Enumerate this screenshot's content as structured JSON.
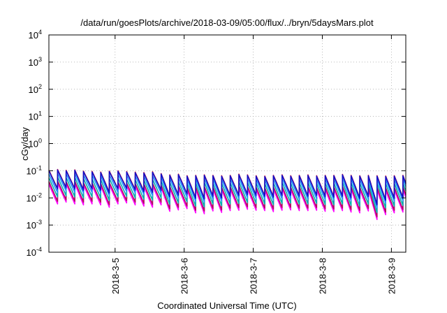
{
  "chart_data": {
    "type": "line",
    "title": "/data/run/goesPlots/archive/2018-03-09/05:00/flux/../bryn/5daysMars.plot",
    "xlabel": "Coordinated Universal Time (UTC)",
    "ylabel": "cGy/day",
    "yscale": "log",
    "ylim": [
      0.0001,
      10000
    ],
    "xlim": [
      "2018-03-04 01:00",
      "2018-03-09 05:00"
    ],
    "grid": true,
    "legend": "none",
    "x_ticks": [
      "2018-3-5",
      "2018-3-6",
      "2018-3-7",
      "2018-3-8",
      "2018-3-9"
    ],
    "y_ticks": [
      {
        "base": "10",
        "exp": "-4",
        "value": 0.0001
      },
      {
        "base": "10",
        "exp": "-3",
        "value": 0.001
      },
      {
        "base": "10",
        "exp": "-2",
        "value": 0.01
      },
      {
        "base": "10",
        "exp": "-1",
        "value": 0.1
      },
      {
        "base": "10",
        "exp": "0",
        "value": 1
      },
      {
        "base": "10",
        "exp": "1",
        "value": 10
      },
      {
        "base": "10",
        "exp": "2",
        "value": 100
      },
      {
        "base": "10",
        "exp": "3",
        "value": 1000
      },
      {
        "base": "10",
        "exp": "4",
        "value": 10000
      }
    ],
    "cycle_hours": 3,
    "series": [
      {
        "color": "#ff00ff",
        "peaks": [
          0.032,
          0.035,
          0.033,
          0.034,
          0.03,
          0.029,
          0.028,
          0.03,
          0.031,
          0.029,
          0.027,
          0.026,
          0.028,
          0.024,
          0.022,
          0.023,
          0.02,
          0.021,
          0.022,
          0.021,
          0.02,
          0.021,
          0.023,
          0.022,
          0.02,
          0.019,
          0.021,
          0.022,
          0.02,
          0.021,
          0.022,
          0.02,
          0.021,
          0.021,
          0.023,
          0.021,
          0.02,
          0.021,
          0.02,
          0.019,
          0.02,
          0.021
        ],
        "troughs": [
          0.006,
          0.007,
          0.006,
          0.0055,
          0.006,
          0.0055,
          0.0045,
          0.006,
          0.0065,
          0.0055,
          0.005,
          0.0045,
          0.0055,
          0.0032,
          0.0036,
          0.004,
          0.0028,
          0.0026,
          0.0033,
          0.0029,
          0.0034,
          0.0035,
          0.0038,
          0.0035,
          0.0034,
          0.0031,
          0.0035,
          0.0036,
          0.0034,
          0.0034,
          0.0035,
          0.0032,
          0.0031,
          0.0034,
          0.003,
          0.0028,
          0.0033,
          0.0016,
          0.0024,
          0.0028,
          0.003,
          0.0026
        ]
      },
      {
        "color": "#b01060",
        "peaks": [
          0.04,
          0.043,
          0.04,
          0.042,
          0.037,
          0.036,
          0.034,
          0.037,
          0.039,
          0.036,
          0.034,
          0.033,
          0.035,
          0.03,
          0.027,
          0.029,
          0.025,
          0.026,
          0.027,
          0.026,
          0.025,
          0.026,
          0.029,
          0.027,
          0.025,
          0.024,
          0.026,
          0.027,
          0.025,
          0.026,
          0.027,
          0.025,
          0.026,
          0.026,
          0.028,
          0.026,
          0.025,
          0.026,
          0.025,
          0.024,
          0.025,
          0.026
        ],
        "troughs": [
          0.0075,
          0.0085,
          0.0075,
          0.007,
          0.0075,
          0.007,
          0.0056,
          0.0075,
          0.008,
          0.007,
          0.0063,
          0.0057,
          0.007,
          0.004,
          0.0045,
          0.005,
          0.0035,
          0.0033,
          0.0041,
          0.0036,
          0.0042,
          0.0044,
          0.0047,
          0.0044,
          0.0042,
          0.0039,
          0.0044,
          0.0045,
          0.0042,
          0.0042,
          0.0044,
          0.004,
          0.0039,
          0.0042,
          0.0037,
          0.0035,
          0.0041,
          0.002,
          0.003,
          0.0035,
          0.0037,
          0.0033
        ]
      },
      {
        "color": "#00b0b0",
        "peaks": [
          0.055,
          0.06,
          0.056,
          0.058,
          0.052,
          0.05,
          0.048,
          0.052,
          0.054,
          0.05,
          0.047,
          0.046,
          0.049,
          0.042,
          0.038,
          0.04,
          0.035,
          0.036,
          0.038,
          0.036,
          0.035,
          0.036,
          0.04,
          0.038,
          0.035,
          0.034,
          0.036,
          0.038,
          0.035,
          0.036,
          0.038,
          0.035,
          0.036,
          0.036,
          0.039,
          0.036,
          0.035,
          0.036,
          0.035,
          0.034,
          0.035,
          0.036
        ],
        "troughs": [
          0.011,
          0.012,
          0.011,
          0.01,
          0.011,
          0.01,
          0.008,
          0.011,
          0.0115,
          0.01,
          0.009,
          0.0082,
          0.01,
          0.0058,
          0.0065,
          0.0072,
          0.005,
          0.0047,
          0.006,
          0.0052,
          0.006,
          0.0063,
          0.0068,
          0.0063,
          0.006,
          0.0056,
          0.0063,
          0.0065,
          0.006,
          0.006,
          0.0063,
          0.0057,
          0.0056,
          0.006,
          0.0053,
          0.005,
          0.0059,
          0.0029,
          0.0043,
          0.005,
          0.0053,
          0.0047
        ]
      },
      {
        "color": "#1e90ff",
        "peaks": [
          0.075,
          0.082,
          0.077,
          0.08,
          0.071,
          0.069,
          0.066,
          0.071,
          0.074,
          0.069,
          0.065,
          0.063,
          0.067,
          0.058,
          0.052,
          0.055,
          0.048,
          0.05,
          0.052,
          0.05,
          0.048,
          0.05,
          0.055,
          0.052,
          0.048,
          0.047,
          0.05,
          0.052,
          0.048,
          0.05,
          0.052,
          0.048,
          0.05,
          0.05,
          0.054,
          0.05,
          0.048,
          0.05,
          0.048,
          0.047,
          0.048,
          0.05
        ],
        "troughs": [
          0.016,
          0.018,
          0.016,
          0.015,
          0.016,
          0.015,
          0.012,
          0.016,
          0.017,
          0.015,
          0.0135,
          0.0122,
          0.015,
          0.0086,
          0.0097,
          0.0107,
          0.0075,
          0.007,
          0.0089,
          0.0078,
          0.009,
          0.0094,
          0.0101,
          0.0094,
          0.009,
          0.0083,
          0.0094,
          0.0097,
          0.009,
          0.009,
          0.0094,
          0.0085,
          0.0083,
          0.009,
          0.0079,
          0.0075,
          0.0088,
          0.0043,
          0.0064,
          0.0075,
          0.0079,
          0.007
        ]
      },
      {
        "color": "#e0102a",
        "peaks": [
          0.105,
          0.112,
          0.104,
          0.108,
          0.097,
          0.095,
          0.09,
          0.097,
          0.1,
          0.094,
          0.089,
          0.086,
          0.092,
          0.079,
          0.071,
          0.075,
          0.066,
          0.068,
          0.071,
          0.068,
          0.066,
          0.068,
          0.075,
          0.071,
          0.066,
          0.064,
          0.068,
          0.071,
          0.066,
          0.068,
          0.071,
          0.066,
          0.068,
          0.068,
          0.074,
          0.068,
          0.066,
          0.068,
          0.066,
          0.064,
          0.066,
          0.068
        ],
        "troughs": [
          0.022,
          0.024,
          0.022,
          0.02,
          0.022,
          0.02,
          0.016,
          0.022,
          0.023,
          0.02,
          0.018,
          0.0165,
          0.02,
          0.0115,
          0.013,
          0.0145,
          0.01,
          0.0095,
          0.012,
          0.0105,
          0.012,
          0.0127,
          0.0137,
          0.0127,
          0.012,
          0.0112,
          0.0127,
          0.013,
          0.012,
          0.012,
          0.0127,
          0.0115,
          0.0112,
          0.012,
          0.0106,
          0.01,
          0.0118,
          0.0058,
          0.0086,
          0.01,
          0.0106,
          0.0094
        ]
      },
      {
        "color": "#1010c8",
        "peaks": [
          0.1,
          0.107,
          0.1,
          0.104,
          0.093,
          0.091,
          0.086,
          0.093,
          0.096,
          0.09,
          0.085,
          0.082,
          0.088,
          0.076,
          0.068,
          0.072,
          0.063,
          0.065,
          0.068,
          0.065,
          0.063,
          0.065,
          0.072,
          0.068,
          0.063,
          0.061,
          0.065,
          0.068,
          0.063,
          0.065,
          0.068,
          0.063,
          0.065,
          0.065,
          0.071,
          0.065,
          0.063,
          0.065,
          0.063,
          0.061,
          0.063,
          0.065
        ],
        "troughs": [
          0.021,
          0.023,
          0.021,
          0.019,
          0.021,
          0.019,
          0.015,
          0.021,
          0.022,
          0.019,
          0.017,
          0.0158,
          0.019,
          0.011,
          0.0125,
          0.0139,
          0.0096,
          0.0091,
          0.0115,
          0.01,
          0.0115,
          0.0122,
          0.0131,
          0.0122,
          0.0115,
          0.0107,
          0.0122,
          0.0125,
          0.0115,
          0.0115,
          0.0122,
          0.011,
          0.0107,
          0.0115,
          0.0101,
          0.0096,
          0.0113,
          0.0056,
          0.0082,
          0.0096,
          0.0101,
          0.009
        ]
      }
    ]
  }
}
